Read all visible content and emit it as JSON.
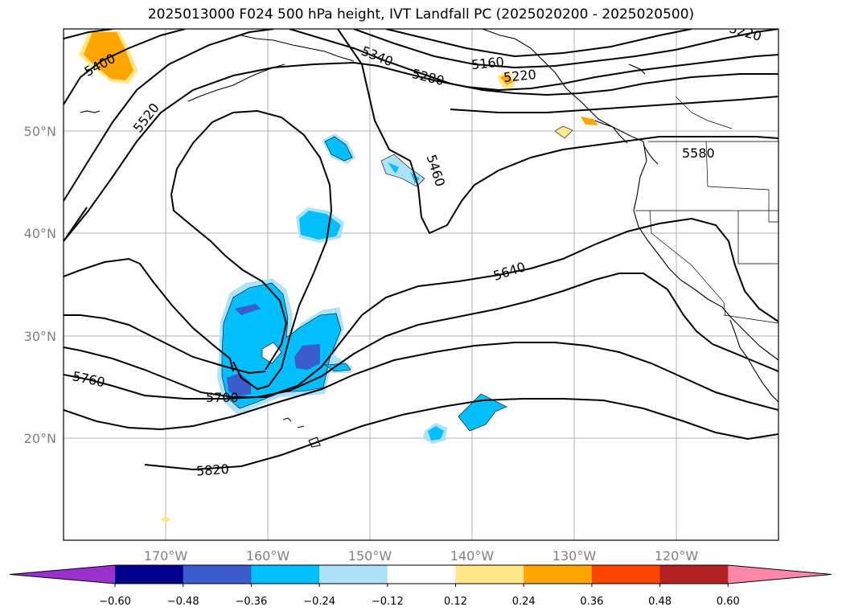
{
  "title": "2025013000 F024 500 hPa height, IVT Landfall PC (2025020200 - 2025020500)",
  "contour_labels": [
    "5400",
    "5520",
    "5340",
    "5280",
    "5160",
    "5220",
    "5220",
    "5460",
    "5580",
    "5640",
    "5760",
    "5700",
    "5820"
  ],
  "lat_labels": [
    "50°N",
    "40°N",
    "30°N",
    "20°N"
  ],
  "lon_labels": [
    "170°W",
    "160°W",
    "150°W",
    "140°W",
    "130°W",
    "120°W"
  ],
  "colorbar": {
    "ticks": [
      "−0.60",
      "−0.48",
      "−0.36",
      "−0.24",
      "−0.12",
      "0.12",
      "0.24",
      "0.36",
      "0.48",
      "0.60"
    ],
    "colors": [
      "#9a31cc",
      "#00008b",
      "#3a5ccc",
      "#00bfff",
      "#aee2f9",
      "#ffffff",
      "#ffe88a",
      "#ffa500",
      "#ff4500",
      "#b22222",
      "#ff88aa"
    ]
  }
}
